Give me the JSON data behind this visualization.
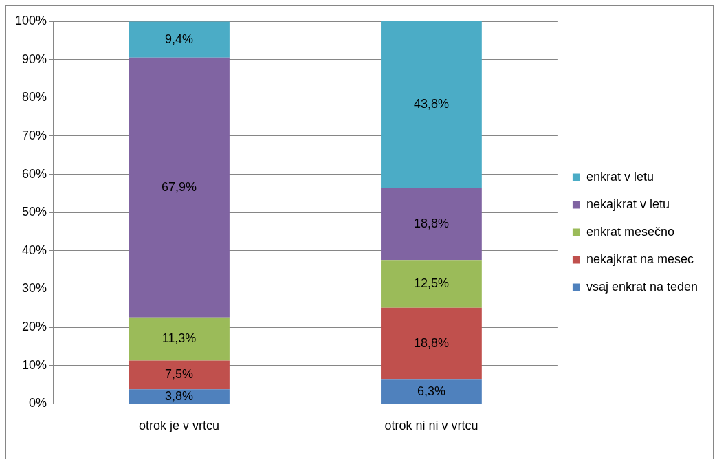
{
  "chart_data": {
    "type": "bar",
    "stacked": true,
    "categories": [
      "otrok je v vrtcu",
      "otrok ni ni v vrtcu"
    ],
    "series": [
      {
        "name": "vsaj enkrat na teden",
        "color": "#4f81bd",
        "values": [
          3.8,
          6.3
        ],
        "value_labels": [
          "3,8%",
          "6,3%"
        ]
      },
      {
        "name": "nekajkrat na mesec",
        "color": "#c0504d",
        "values": [
          7.5,
          18.8
        ],
        "value_labels": [
          "7,5%",
          "18,8%"
        ]
      },
      {
        "name": "enkrat mesečno",
        "color": "#9bbb59",
        "values": [
          11.3,
          12.5
        ],
        "value_labels": [
          "11,3%",
          "12,5%"
        ]
      },
      {
        "name": "nekajkrat v letu",
        "color": "#8064a2",
        "values": [
          67.9,
          18.8
        ],
        "value_labels": [
          "67,9%",
          "18,8%"
        ]
      },
      {
        "name": "enkrat v letu",
        "color": "#4bacc6",
        "values": [
          9.4,
          43.8
        ],
        "value_labels": [
          "9,4%",
          "43,8%"
        ]
      }
    ],
    "ylim": [
      0,
      100
    ],
    "yticks": [
      {
        "value": 0,
        "label": "0%"
      },
      {
        "value": 10,
        "label": "10%"
      },
      {
        "value": 20,
        "label": "20%"
      },
      {
        "value": 30,
        "label": "30%"
      },
      {
        "value": 40,
        "label": "40%"
      },
      {
        "value": 50,
        "label": "50%"
      },
      {
        "value": 60,
        "label": "60%"
      },
      {
        "value": 70,
        "label": "70%"
      },
      {
        "value": 80,
        "label": "80%"
      },
      {
        "value": 90,
        "label": "90%"
      },
      {
        "value": 100,
        "label": "100%"
      }
    ],
    "grid": "y",
    "legend": "right"
  }
}
